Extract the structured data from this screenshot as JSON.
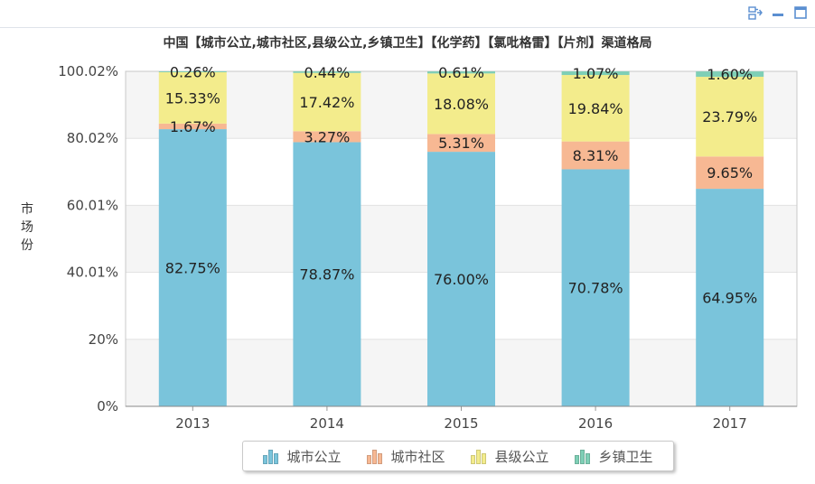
{
  "toolbar": {
    "icons": [
      "chart-switch-icon",
      "minimize-icon",
      "maximize-icon"
    ]
  },
  "chart_data": {
    "type": "bar",
    "stacked": true,
    "title": "中国【城市公立,城市社区,县级公立,乡镇卫生】【化学药】【氯吡格雷】【片剂】渠道格局",
    "ylabel": "市场份",
    "xlabel": "",
    "categories": [
      "2013",
      "2014",
      "2015",
      "2016",
      "2017"
    ],
    "y_tick_labels": [
      "0%",
      "20%",
      "40.01%",
      "60.01%",
      "80.02%",
      "100.02%"
    ],
    "ylim": [
      0,
      100.02
    ],
    "grid": true,
    "legend_position": "bottom",
    "series": [
      {
        "name": "城市公立",
        "color": "#7ac4db",
        "values": [
          82.75,
          78.87,
          76.0,
          70.78,
          64.95
        ],
        "labels": [
          "82.75%",
          "78.87%",
          "76.00%",
          "70.78%",
          "64.95%"
        ]
      },
      {
        "name": "城市社区",
        "color": "#f7b893",
        "values": [
          1.67,
          3.27,
          5.31,
          8.31,
          9.65
        ],
        "labels": [
          "1.67%",
          "3.27%",
          "5.31%",
          "8.31%",
          "9.65%"
        ]
      },
      {
        "name": "县级公立",
        "color": "#f3ec8c",
        "values": [
          15.33,
          17.42,
          18.08,
          19.84,
          23.79
        ],
        "labels": [
          "15.33%",
          "17.42%",
          "18.08%",
          "19.84%",
          "23.79%"
        ]
      },
      {
        "name": "乡镇卫生",
        "color": "#7fcfb6",
        "values": [
          0.26,
          0.44,
          0.61,
          1.07,
          1.6
        ],
        "labels": [
          "0.26%",
          "0.44%",
          "0.61%",
          "1.07%",
          "1.60%"
        ]
      }
    ]
  }
}
